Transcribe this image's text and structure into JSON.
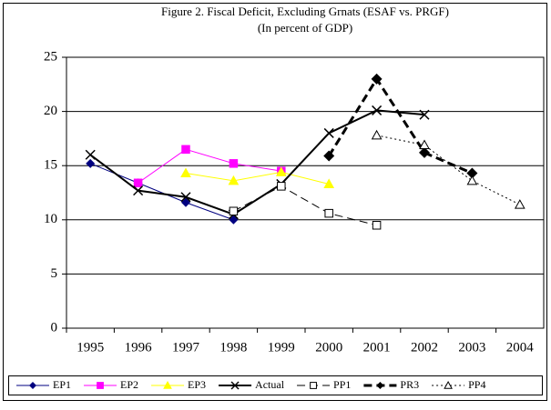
{
  "chart_data": {
    "type": "line",
    "title": "Figure 2. Fiscal Deficit, Excluding Grnats (ESAF vs. PRGF)",
    "subtitle": "(In percent of GDP)",
    "categories": [
      "1995",
      "1996",
      "1997",
      "1998",
      "1999",
      "2000",
      "2001",
      "2002",
      "2003",
      "2004"
    ],
    "ylim": [
      0,
      25
    ],
    "yticks": [
      0,
      5,
      10,
      15,
      20,
      25
    ],
    "grid": true,
    "legend": "bottom",
    "series": [
      {
        "name": "EP1",
        "color": "#000080",
        "marker": "diamond",
        "line_style": "solid",
        "line_width": 1,
        "values": [
          15.2,
          13.4,
          11.6,
          10.0,
          null,
          null,
          null,
          null,
          null,
          null
        ]
      },
      {
        "name": "EP2",
        "color": "#ff00ff",
        "marker": "square",
        "line_style": "solid",
        "line_width": 1,
        "values": [
          null,
          13.4,
          16.5,
          15.2,
          14.5,
          null,
          null,
          null,
          null,
          null
        ]
      },
      {
        "name": "EP3",
        "color": "#ffff00",
        "marker": "triangle",
        "line_style": "solid",
        "line_width": 1,
        "values": [
          null,
          null,
          14.3,
          13.6,
          14.4,
          13.3,
          null,
          null,
          null,
          null
        ]
      },
      {
        "name": "Actual",
        "color": "#000000",
        "marker": "x",
        "line_style": "solid",
        "line_width": 2,
        "values": [
          16.0,
          12.7,
          12.1,
          10.5,
          13.3,
          18.0,
          20.1,
          19.7,
          null,
          null
        ]
      },
      {
        "name": "PP1",
        "color": "#000000",
        "marker": "open-square",
        "line_style": "dashed",
        "line_width": 1,
        "values": [
          null,
          null,
          null,
          10.8,
          13.1,
          10.6,
          9.5,
          null,
          null,
          null
        ]
      },
      {
        "name": "PR3",
        "color": "#000000",
        "marker": "diamond",
        "line_style": "dashed",
        "line_width": 3,
        "values": [
          null,
          null,
          null,
          null,
          null,
          15.9,
          23.0,
          16.2,
          14.3,
          null
        ]
      },
      {
        "name": "PP4",
        "color": "#000000",
        "marker": "open-triangle",
        "line_style": "dotted",
        "line_width": 1,
        "values": [
          null,
          null,
          null,
          null,
          null,
          null,
          17.8,
          16.9,
          13.6,
          11.4
        ]
      }
    ]
  }
}
